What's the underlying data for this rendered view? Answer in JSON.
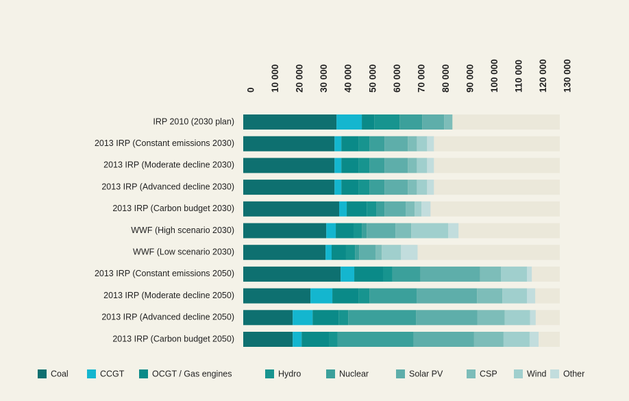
{
  "chart_data": {
    "type": "stacked-barh",
    "categories": [
      "IRP 2010 (2030 plan)",
      "2013 IRP (Constant emissions 2030)",
      "2013 IRP (Moderate decline 2030)",
      "2013 IRP (Advanced decline 2030)",
      "2013 IRP (Carbon budget 2030)",
      "WWF (High scenario 2030)",
      "WWF (Low scenario 2030)",
      "2013 IRP (Constant emissions 2050)",
      "2013 IRP (Moderate decline 2050)",
      "2013 IRP (Advanced decline 2050)",
      "2013 IRP (Carbon budget 2050)"
    ],
    "series": [
      {
        "name": "Coal",
        "color": "#0e7070",
        "values": [
          38300,
          37500,
          37500,
          37500,
          39400,
          34100,
          33800,
          40000,
          27600,
          20300,
          20300
        ]
      },
      {
        "name": "CCGT",
        "color": "#14b6cf",
        "values": [
          10400,
          2800,
          2800,
          2800,
          3100,
          3900,
          2500,
          5600,
          9000,
          8200,
          3700
        ]
      },
      {
        "name": "OCGT / Gas engines",
        "color": "#0a8a88",
        "values": [
          5100,
          7000,
          7000,
          7000,
          8200,
          7300,
          5900,
          11800,
          10700,
          10700,
          11300
        ]
      },
      {
        "name": "Hydro",
        "color": "#17948f",
        "values": [
          10400,
          4500,
          4500,
          4500,
          3900,
          3400,
          3700,
          3900,
          4500,
          3900,
          3400
        ]
      },
      {
        "name": "Nuclear",
        "color": "#3ba09b",
        "values": [
          9300,
          6200,
          6200,
          6200,
          3400,
          2000,
          1700,
          11500,
          19400,
          27900,
          31300
        ]
      },
      {
        "name": "Solar PV",
        "color": "#5eaeaa",
        "values": [
          9000,
          9600,
          9600,
          9600,
          8700,
          11800,
          6800,
          24500,
          24800,
          25100,
          24800
        ]
      },
      {
        "name": "CSP",
        "color": "#7dbdb9",
        "values": [
          3400,
          3700,
          3700,
          3700,
          3700,
          6500,
          2500,
          8500,
          10400,
          11300,
          12100
        ]
      },
      {
        "name": "Wind",
        "color": "#a0cfcd",
        "values": [
          0,
          4200,
          4200,
          4200,
          2800,
          15200,
          7900,
          10700,
          10100,
          10400,
          10700
        ]
      },
      {
        "name": "Other",
        "color": "#c2dddd",
        "values": [
          0,
          2800,
          2800,
          2800,
          3700,
          4200,
          6800,
          2000,
          3400,
          2300,
          3700
        ]
      }
    ],
    "xlim": [
      0,
      130000
    ],
    "xticks": [
      0,
      {
        "value": 10000,
        "label": "10 000"
      },
      {
        "value": 20000,
        "label": "20 000"
      },
      {
        "value": 30000,
        "label": "30 000"
      },
      {
        "value": 40000,
        "label": "40 000"
      },
      {
        "value": 50000,
        "label": "50 000"
      },
      {
        "value": 60000,
        "label": "60 000"
      },
      {
        "value": 70000,
        "label": "70 000"
      },
      {
        "value": 80000,
        "label": "80 000"
      },
      {
        "value": 90000,
        "label": "90 000"
      },
      {
        "value": 100000,
        "label": "100 000"
      },
      {
        "value": 110000,
        "label": "110 000"
      },
      {
        "value": 120000,
        "label": "120 000"
      },
      {
        "value": 130000,
        "label": "130 000"
      }
    ],
    "highlight_tick_color": "#1a8a8a",
    "track_color": "#ebe8da"
  }
}
